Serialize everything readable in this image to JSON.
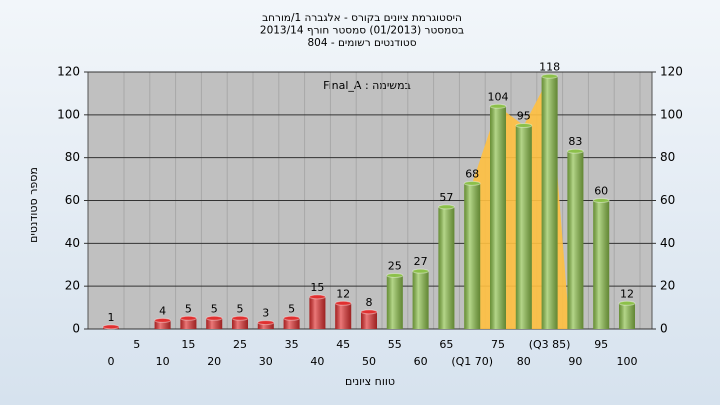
{
  "chart_data": {
    "type": "bar",
    "title": [
      "היסטוגרמת ציונים בקורס - אלגברה 1/מורחב",
      "בסמסטר  (01/2013)  סמסטר חורף 2013/14",
      "סטודנטים רשומים - 804"
    ],
    "annotation": "במשימה : Final_A",
    "x_label": "טווח ציונים",
    "y_label": "מספר סטודנטים",
    "categories": [
      "0",
      "5",
      "10",
      "15",
      "20",
      "25",
      "30",
      "35",
      "40",
      "45",
      "50",
      "55",
      "60",
      "65",
      "(Q1 70)",
      "75",
      "80",
      "(Q3 85)",
      "90",
      "95",
      "100"
    ],
    "values": [
      1,
      null,
      4,
      5,
      5,
      5,
      3,
      5,
      15,
      12,
      8,
      25,
      27,
      57,
      68,
      104,
      95,
      118,
      83,
      60,
      12
    ],
    "colors": [
      "#e03030",
      null,
      "#e03030",
      "#e03030",
      "#e03030",
      "#e03030",
      "#e03030",
      "#e03030",
      "#e03030",
      "#e03030",
      "#e03030",
      "#8cc04a",
      "#8cc04a",
      "#8cc04a",
      "#8cc04a",
      "#8cc04a",
      "#8cc04a",
      "#8cc04a",
      "#8cc04a",
      "#8cc04a",
      "#8cc04a"
    ],
    "band_color": "#ffc040",
    "ylim": [
      0,
      120
    ],
    "yticks": [
      0,
      20,
      40,
      60,
      80,
      100,
      120
    ],
    "grid": true
  }
}
